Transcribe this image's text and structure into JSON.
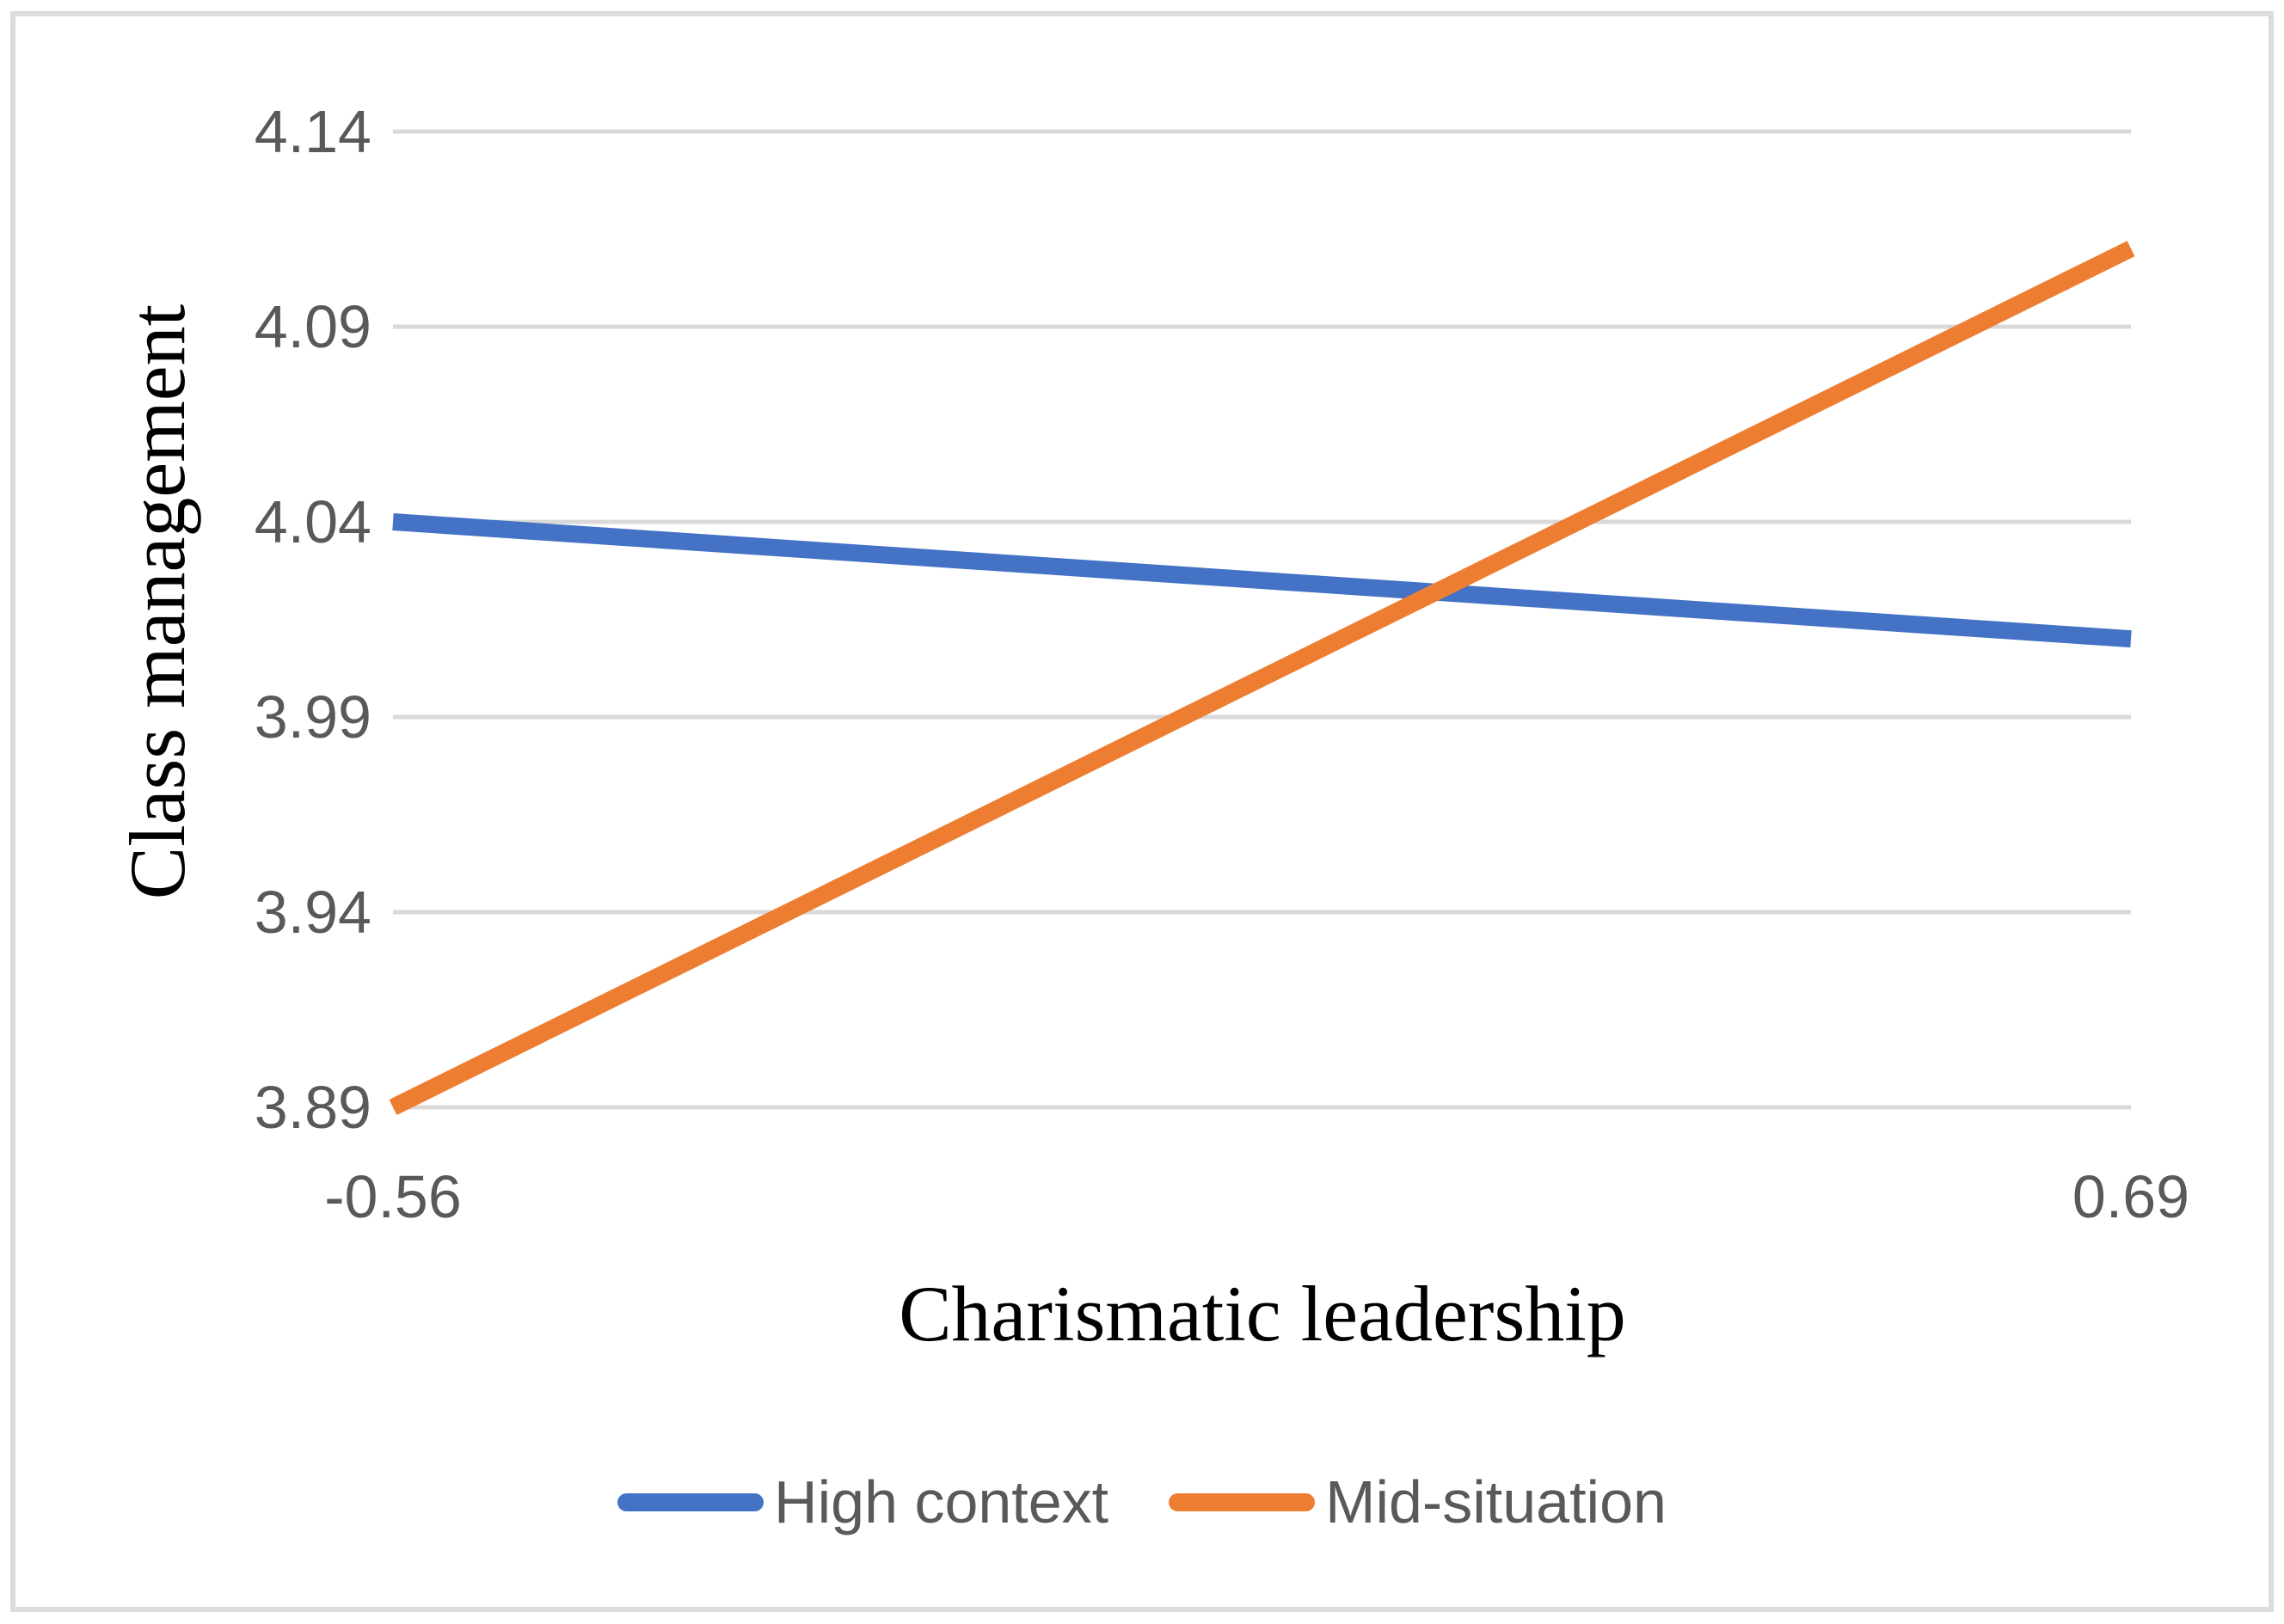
{
  "chart_data": {
    "type": "line",
    "xlabel": "Charismatic leadership",
    "ylabel": "Class management",
    "x": [
      -0.56,
      0.69
    ],
    "x_tick_labels": [
      "-0.56",
      "0.69"
    ],
    "y_ticks": [
      "3.89",
      "3.94",
      "3.99",
      "4.04",
      "4.09",
      "4.14"
    ],
    "ylim": [
      3.89,
      4.14
    ],
    "series": [
      {
        "name": "High context",
        "color": "#4472C4",
        "values": [
          4.04,
          4.01
        ]
      },
      {
        "name": "Mid-situation",
        "color": "#ED7D31",
        "values": [
          3.89,
          4.11
        ]
      }
    ],
    "grid": "horizontal",
    "legend_position": "bottom"
  },
  "styles": {
    "background": "#FFFFFF",
    "grid_color": "#D9D9D9",
    "tick_text_color": "#595959",
    "legend_text_color": "#595959",
    "axis_title_color": "#000000",
    "frame_color": "#DCDCDC"
  }
}
